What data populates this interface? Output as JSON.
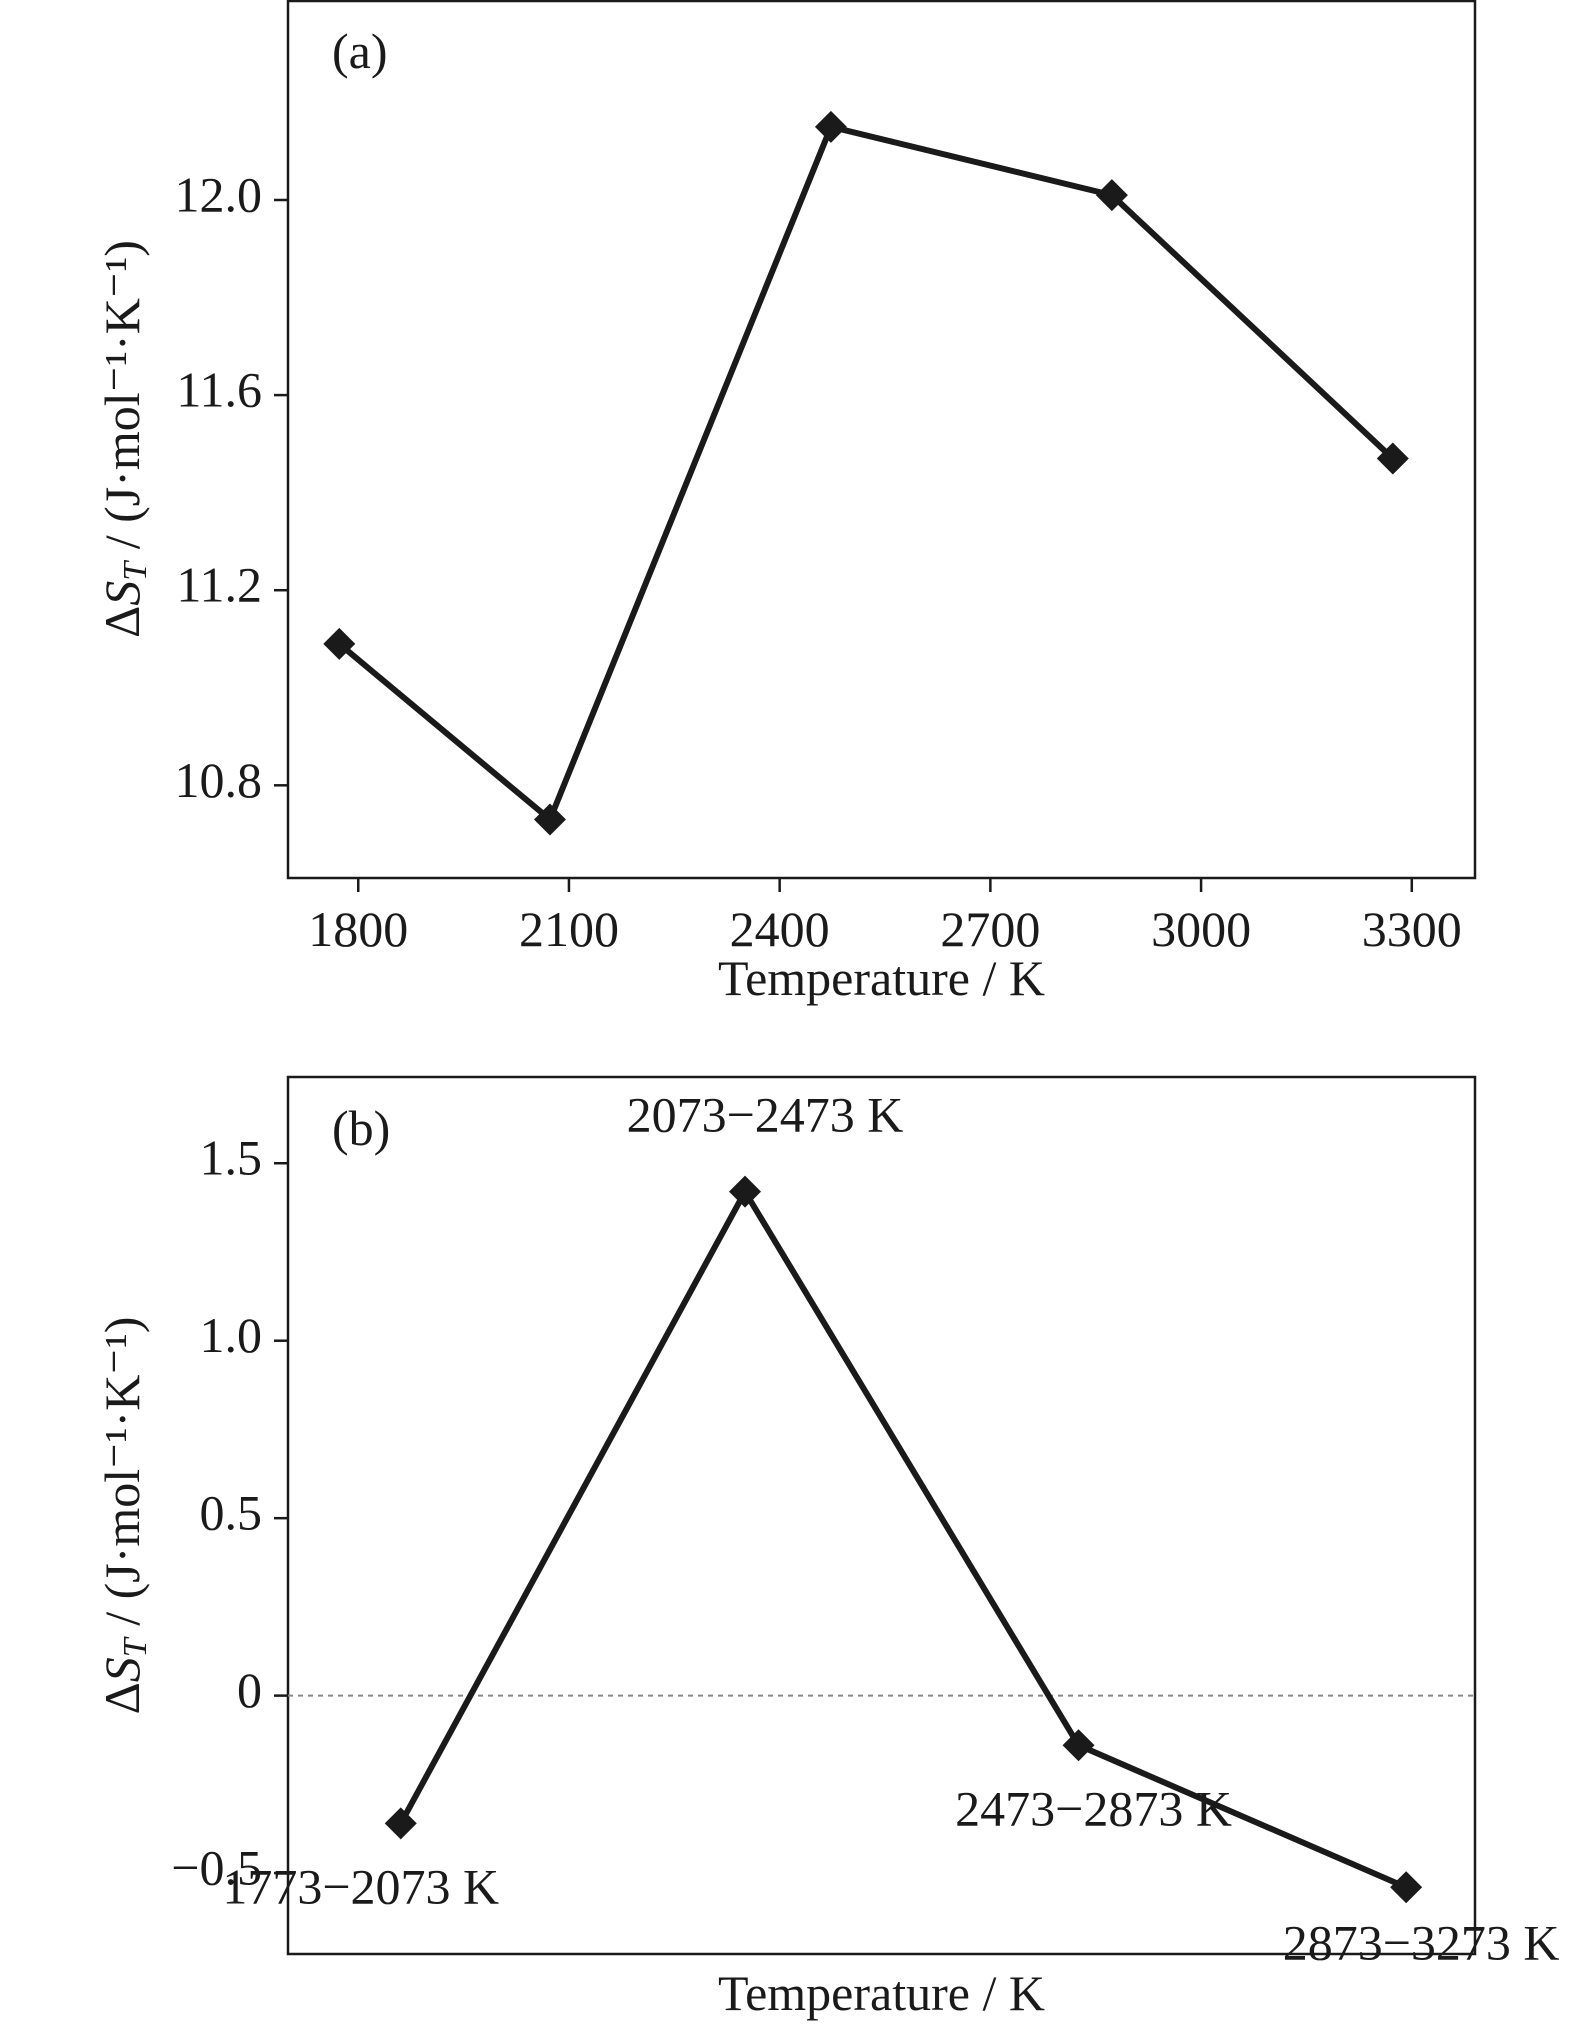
{
  "chart_data": [
    {
      "type": "line",
      "panel_label": "(a)",
      "xlabel": "Temperature / K",
      "ylabel": "ΔS_T / (J·mol⁻¹·K⁻¹)",
      "xlim": [
        1700,
        3390
      ],
      "ylim": [
        10.61,
        12.41
      ],
      "x_ticks": [
        1800,
        2100,
        2400,
        2700,
        3000,
        3300
      ],
      "y_ticks": [
        10.8,
        11.2,
        11.6,
        12.0
      ],
      "y_tick_labels": [
        "10.8",
        "11.2",
        "11.6",
        "12.0"
      ],
      "marker": "diamond",
      "color": "#1a1a1a",
      "series": [
        {
          "x": [
            1773,
            2073,
            2473,
            2873,
            3273
          ],
          "y": [
            11.09,
            10.73,
            12.15,
            12.01,
            11.47
          ]
        }
      ]
    },
    {
      "type": "line",
      "panel_label": "(b)",
      "xlabel": "Temperature / K",
      "ylabel": "ΔS_T / (J·mol⁻¹·K⁻¹)",
      "xlim": [
        0,
        1
      ],
      "ylim": [
        -0.728,
        1.743
      ],
      "y_ticks": [
        -0.5,
        0,
        0.5,
        1.0,
        1.5
      ],
      "y_tick_labels": [
        "−0.5",
        "0",
        "0.5",
        "1.0",
        "1.5"
      ],
      "zero_line": true,
      "marker": "diamond",
      "color": "#1a1a1a",
      "categories": [
        "1773−2073 K",
        "2073−2473 K",
        "2473−2873 K",
        "2873−3273 K"
      ],
      "series": [
        {
          "values": [
            -0.36,
            1.42,
            -0.14,
            -0.54
          ]
        }
      ]
    }
  ]
}
